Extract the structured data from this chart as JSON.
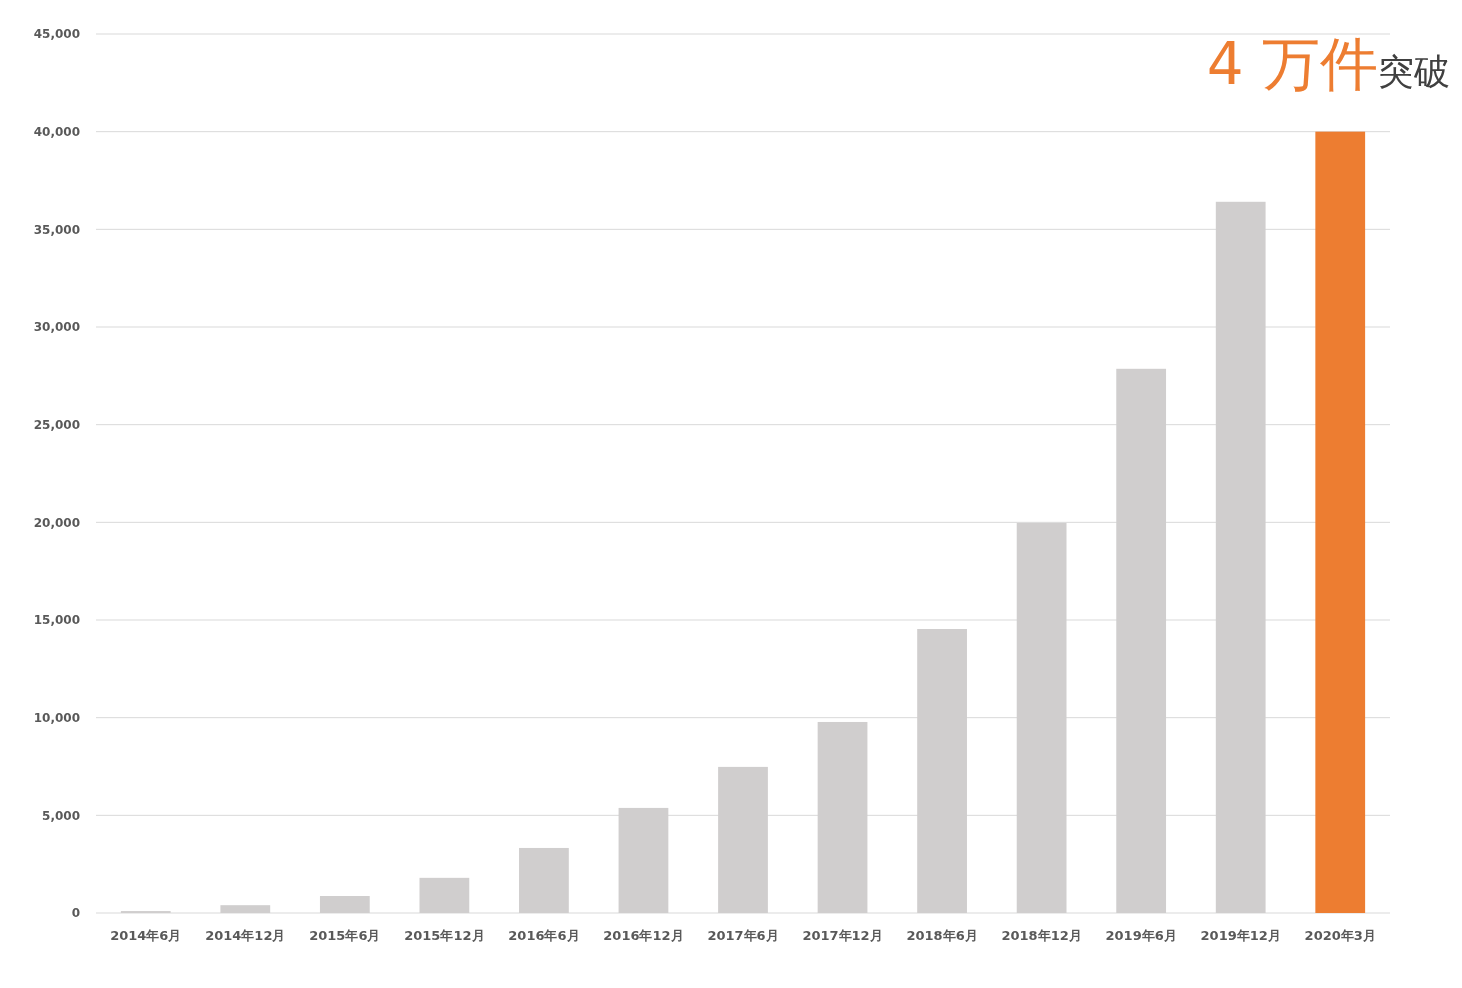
{
  "chart_data": {
    "type": "bar",
    "categories": [
      "2014年6月",
      "2014年12月",
      "2015年6月",
      "2015年12月",
      "2016年6月",
      "2016年12月",
      "2017年6月",
      "2017年12月",
      "2018年6月",
      "2018年12月",
      "2019年6月",
      "2019年12月",
      "2020年3月"
    ],
    "values": [
      100,
      400,
      870,
      1800,
      3330,
      5380,
      7480,
      9780,
      14540,
      19970,
      27860,
      36410,
      40000
    ],
    "colors": [
      "#d0cece",
      "#d0cece",
      "#d0cece",
      "#d0cece",
      "#d0cece",
      "#d0cece",
      "#d0cece",
      "#d0cece",
      "#d0cece",
      "#d0cece",
      "#d0cece",
      "#d0cece",
      "#ed7d31"
    ],
    "ylim": [
      0,
      45000
    ],
    "yticks": [
      {
        "value": 0,
        "label": "0"
      },
      {
        "value": 5000,
        "label": "5,000"
      },
      {
        "value": 10000,
        "label": "10,000"
      },
      {
        "value": 15000,
        "label": "15,000"
      },
      {
        "value": 20000,
        "label": "20,000"
      },
      {
        "value": 25000,
        "label": "25,000"
      },
      {
        "value": 30000,
        "label": "30,000"
      },
      {
        "value": 35000,
        "label": "35,000"
      },
      {
        "value": 40000,
        "label": "40,000"
      },
      {
        "value": 45000,
        "label": "45,000"
      }
    ],
    "grid": true,
    "annotations": [
      "4 万件",
      "突破"
    ]
  }
}
